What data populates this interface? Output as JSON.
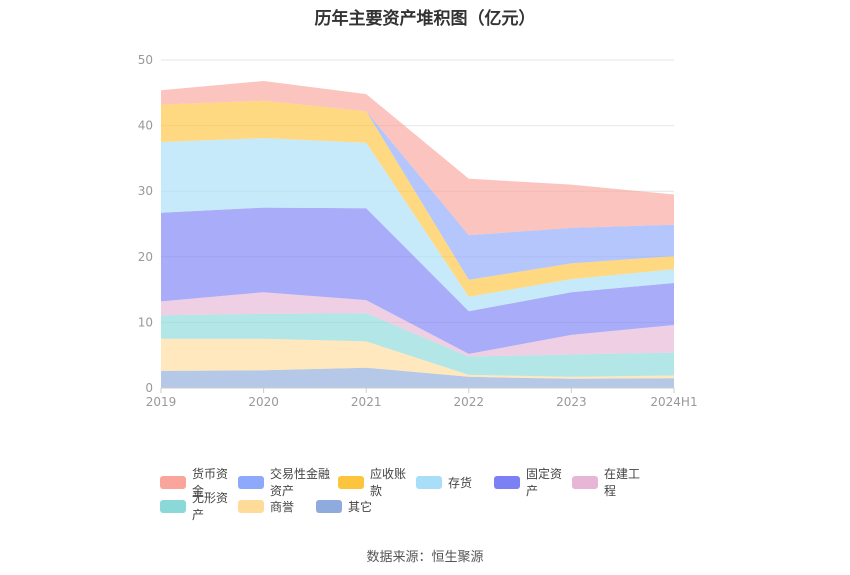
{
  "chart_data": {
    "type": "area",
    "stacked": true,
    "title": "历年主要资产堆积图（亿元）",
    "categories": [
      "2019",
      "2020",
      "2021",
      "2022",
      "2023",
      "2024H1"
    ],
    "yticks": [
      "0",
      "10",
      "20",
      "30",
      "40",
      "50"
    ],
    "ylim": [
      0,
      50
    ],
    "grid": true,
    "legend_position": "bottom",
    "series": [
      {
        "name": "其它",
        "color": "#8faadc",
        "values": [
          2.6,
          2.7,
          3.1,
          1.7,
          1.4,
          1.5
        ]
      },
      {
        "name": "商誉",
        "color": "#ffdb9a",
        "values": [
          4.9,
          4.8,
          4.0,
          0.3,
          0.3,
          0.4
        ]
      },
      {
        "name": "无形资产",
        "color": "#8ad8d8",
        "values": [
          3.6,
          3.8,
          4.3,
          2.8,
          3.4,
          3.5
        ]
      },
      {
        "name": "在建工程",
        "color": "#e7b6d6",
        "values": [
          2.1,
          3.3,
          2.0,
          0.4,
          3.0,
          4.2
        ]
      },
      {
        "name": "固定资产",
        "color": "#7b80f4",
        "values": [
          13.5,
          12.9,
          14.0,
          6.5,
          6.5,
          6.4
        ]
      },
      {
        "name": "存货",
        "color": "#a9def9",
        "values": [
          10.8,
          10.6,
          10.0,
          2.2,
          2.0,
          2.1
        ]
      },
      {
        "name": "应收账款",
        "color": "#fdc53e",
        "values": [
          5.7,
          5.7,
          4.8,
          2.6,
          2.4,
          2.0
        ]
      },
      {
        "name": "交易性金融资产",
        "color": "#8ea8fc",
        "values": [
          0.0,
          0.0,
          0.0,
          6.8,
          5.4,
          4.8
        ]
      },
      {
        "name": "货币资金",
        "color": "#f9a59c",
        "values": [
          2.2,
          3.0,
          2.6,
          8.6,
          6.6,
          4.6
        ]
      }
    ]
  },
  "legend": {
    "row1": [
      "货币资金",
      "交易性金融资产",
      "应收账款",
      "存货",
      "固定资产",
      "在建工程"
    ],
    "row2": [
      "无形资产",
      "商誉",
      "其它"
    ]
  },
  "source": "数据来源：恒生聚源"
}
